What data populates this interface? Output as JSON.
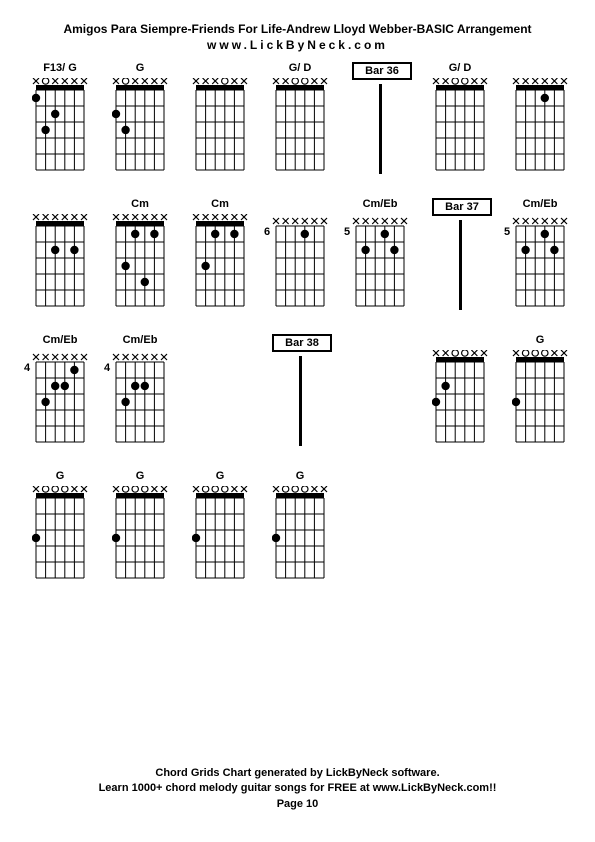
{
  "header": {
    "title": "Amigos Para Siempre-Friends For Life-Andrew Lloyd Webber-BASIC Arrangement",
    "site": "www.LickByNeck.com"
  },
  "footer": {
    "line1": "Chord Grids Chart generated by LickByNeck software.",
    "line2": "Learn 1000+ chord melody guitar songs for FREE at www.LickByNeck.com!!",
    "page": "Page 10"
  },
  "diagram": {
    "width": 56,
    "height": 96,
    "strings": 6,
    "frets": 5,
    "line_color": "#000000",
    "dot_fill": "#000000",
    "open_stroke": "#000000",
    "dot_radius": 4.2,
    "open_radius": 3.2,
    "nut_height": 5
  },
  "rows": [
    [
      {
        "type": "chord",
        "label": "F13/ G",
        "nut": true,
        "fret_text": null,
        "top": [
          "x",
          "o",
          "x",
          "x",
          "x",
          "x"
        ],
        "dots": [
          [
            1,
            1
          ],
          [
            2,
            3
          ],
          [
            3,
            2
          ]
        ]
      },
      {
        "type": "chord",
        "label": "G",
        "nut": true,
        "fret_text": null,
        "top": [
          "x",
          "o",
          "x",
          "x",
          "x",
          "x"
        ],
        "dots": [
          [
            2,
            3
          ],
          [
            1,
            2
          ]
        ]
      },
      {
        "type": "chord",
        "label": "",
        "nut": true,
        "fret_text": null,
        "top": [
          "x",
          "x",
          "x",
          "o",
          "x",
          "x"
        ],
        "dots": []
      },
      {
        "type": "chord",
        "label": "G/ D",
        "nut": true,
        "fret_text": null,
        "top": [
          "x",
          "x",
          "o",
          "o",
          "x",
          "x"
        ],
        "dots": []
      },
      {
        "type": "bar",
        "label": "Bar 36"
      },
      {
        "type": "chord",
        "label": "G/ D",
        "nut": true,
        "fret_text": null,
        "top": [
          "x",
          "x",
          "o",
          "o",
          "x",
          "x"
        ],
        "dots": []
      },
      {
        "type": "chord",
        "label": "",
        "nut": true,
        "fret_text": null,
        "top": [
          "x",
          "x",
          "x",
          "x",
          "x",
          "x"
        ],
        "dots": [
          [
            4,
            1
          ]
        ]
      }
    ],
    [
      {
        "type": "chord",
        "label": "",
        "nut": true,
        "fret_text": null,
        "top": [
          "x",
          "x",
          "x",
          "x",
          "x",
          "x"
        ],
        "dots": [
          [
            3,
            2
          ],
          [
            5,
            2
          ]
        ]
      },
      {
        "type": "chord",
        "label": "Cm",
        "nut": true,
        "fret_text": null,
        "top": [
          "x",
          "x",
          "x",
          "x",
          "x",
          "x"
        ],
        "dots": [
          [
            2,
            3
          ],
          [
            3,
            1
          ],
          [
            5,
            1
          ],
          [
            4,
            4
          ]
        ]
      },
      {
        "type": "chord",
        "label": "Cm",
        "nut": true,
        "fret_text": null,
        "top": [
          "x",
          "x",
          "x",
          "x",
          "x",
          "x"
        ],
        "dots": [
          [
            2,
            3
          ],
          [
            3,
            1
          ],
          [
            5,
            1
          ]
        ]
      },
      {
        "type": "chord",
        "label": "",
        "nut": false,
        "fret_text": "6",
        "top": [
          "x",
          "x",
          "x",
          "x",
          "x",
          "x"
        ],
        "dots": [
          [
            4,
            1
          ]
        ]
      },
      {
        "type": "chord",
        "label": "Cm/Eb",
        "nut": false,
        "fret_text": "5",
        "top": [
          "x",
          "x",
          "x",
          "x",
          "x",
          "x"
        ],
        "dots": [
          [
            2,
            2
          ],
          [
            4,
            1
          ],
          [
            5,
            2
          ]
        ]
      },
      {
        "type": "bar",
        "label": "Bar 37"
      },
      {
        "type": "chord",
        "label": "Cm/Eb",
        "nut": false,
        "fret_text": "5",
        "top": [
          "x",
          "x",
          "x",
          "x",
          "x",
          "x"
        ],
        "dots": [
          [
            2,
            2
          ],
          [
            4,
            1
          ],
          [
            5,
            2
          ]
        ]
      }
    ],
    [
      {
        "type": "chord",
        "label": "Cm/Eb",
        "nut": false,
        "fret_text": "4",
        "top": [
          "x",
          "x",
          "x",
          "x",
          "x",
          "x"
        ],
        "dots": [
          [
            2,
            3
          ],
          [
            3,
            2
          ],
          [
            4,
            2
          ],
          [
            5,
            1
          ]
        ]
      },
      {
        "type": "chord",
        "label": "Cm/Eb",
        "nut": false,
        "fret_text": "4",
        "top": [
          "x",
          "x",
          "x",
          "x",
          "x",
          "x"
        ],
        "dots": [
          [
            2,
            3
          ],
          [
            3,
            2
          ],
          [
            4,
            2
          ]
        ]
      },
      {
        "type": "spacer"
      },
      {
        "type": "bar",
        "label": "Bar 38"
      },
      {
        "type": "spacer"
      },
      {
        "type": "chord",
        "label": "",
        "nut": true,
        "fret_text": null,
        "top": [
          "x",
          "x",
          "o",
          "o",
          "x",
          "x"
        ],
        "dots": [
          [
            2,
            2
          ],
          [
            1,
            3
          ]
        ]
      },
      {
        "type": "chord",
        "label": "G",
        "nut": true,
        "fret_text": null,
        "top": [
          "x",
          "o",
          "o",
          "o",
          "x",
          "x"
        ],
        "dots": [
          [
            1,
            3
          ]
        ]
      }
    ],
    [
      {
        "type": "chord",
        "label": "G",
        "nut": true,
        "fret_text": null,
        "top": [
          "x",
          "o",
          "o",
          "o",
          "x",
          "x"
        ],
        "dots": [
          [
            1,
            3
          ]
        ]
      },
      {
        "type": "chord",
        "label": "G",
        "nut": true,
        "fret_text": null,
        "top": [
          "x",
          "o",
          "o",
          "o",
          "x",
          "x"
        ],
        "dots": [
          [
            1,
            3
          ]
        ]
      },
      {
        "type": "chord",
        "label": "G",
        "nut": true,
        "fret_text": null,
        "top": [
          "x",
          "o",
          "o",
          "o",
          "x",
          "x"
        ],
        "dots": [
          [
            1,
            3
          ]
        ]
      },
      {
        "type": "chord",
        "label": "G",
        "nut": true,
        "fret_text": null,
        "top": [
          "x",
          "o",
          "o",
          "o",
          "x",
          "x"
        ],
        "dots": [
          [
            1,
            3
          ]
        ]
      }
    ]
  ]
}
